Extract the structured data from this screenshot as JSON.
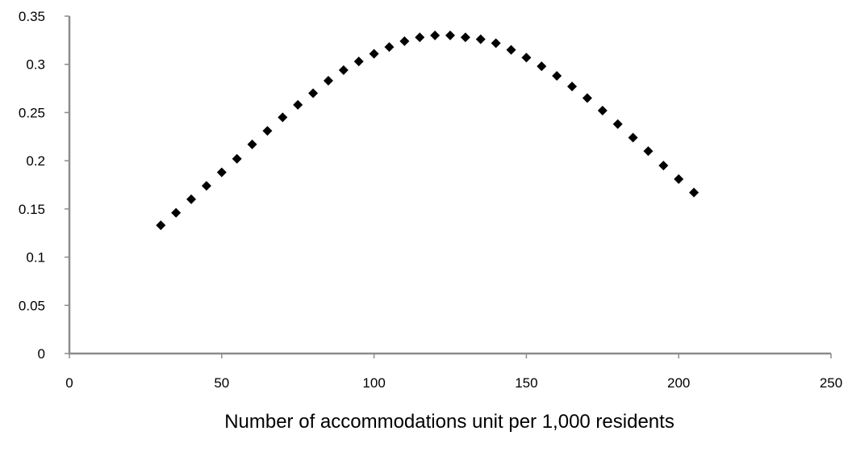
{
  "chart_data": {
    "type": "scatter",
    "title": "",
    "xlabel": "Number of accommodations unit per 1,000 residents",
    "ylabel": "",
    "xlim": [
      0,
      250
    ],
    "ylim": [
      0,
      0.35
    ],
    "x_ticks": [
      0,
      50,
      100,
      150,
      200,
      250
    ],
    "y_ticks": [
      0,
      0.05,
      0.1,
      0.15,
      0.2,
      0.25,
      0.3,
      0.35
    ],
    "x_tick_labels": [
      "0",
      "50",
      "100",
      "150",
      "200",
      "250"
    ],
    "y_tick_labels": [
      "0",
      "0.05",
      "0.1",
      "0.15",
      "0.2",
      "0.25",
      "0.3",
      "0.35"
    ],
    "grid": false,
    "legend": "none",
    "marker": "diamond",
    "marker_color": "#000000",
    "series": [
      {
        "x": [
          30,
          35,
          40,
          45,
          50,
          55,
          60,
          65,
          70,
          75,
          80,
          85,
          90,
          95,
          100,
          105,
          110,
          115,
          120,
          125,
          130,
          135,
          140,
          145,
          150,
          155,
          160,
          165,
          170,
          175,
          180,
          185,
          190,
          195,
          200,
          205
        ],
        "y": [
          0.133,
          0.146,
          0.16,
          0.174,
          0.188,
          0.202,
          0.217,
          0.231,
          0.245,
          0.258,
          0.27,
          0.283,
          0.294,
          0.303,
          0.311,
          0.318,
          0.324,
          0.328,
          0.33,
          0.33,
          0.328,
          0.326,
          0.322,
          0.315,
          0.307,
          0.298,
          0.288,
          0.277,
          0.265,
          0.252,
          0.238,
          0.224,
          0.21,
          0.195,
          0.181,
          0.167
        ]
      }
    ]
  }
}
